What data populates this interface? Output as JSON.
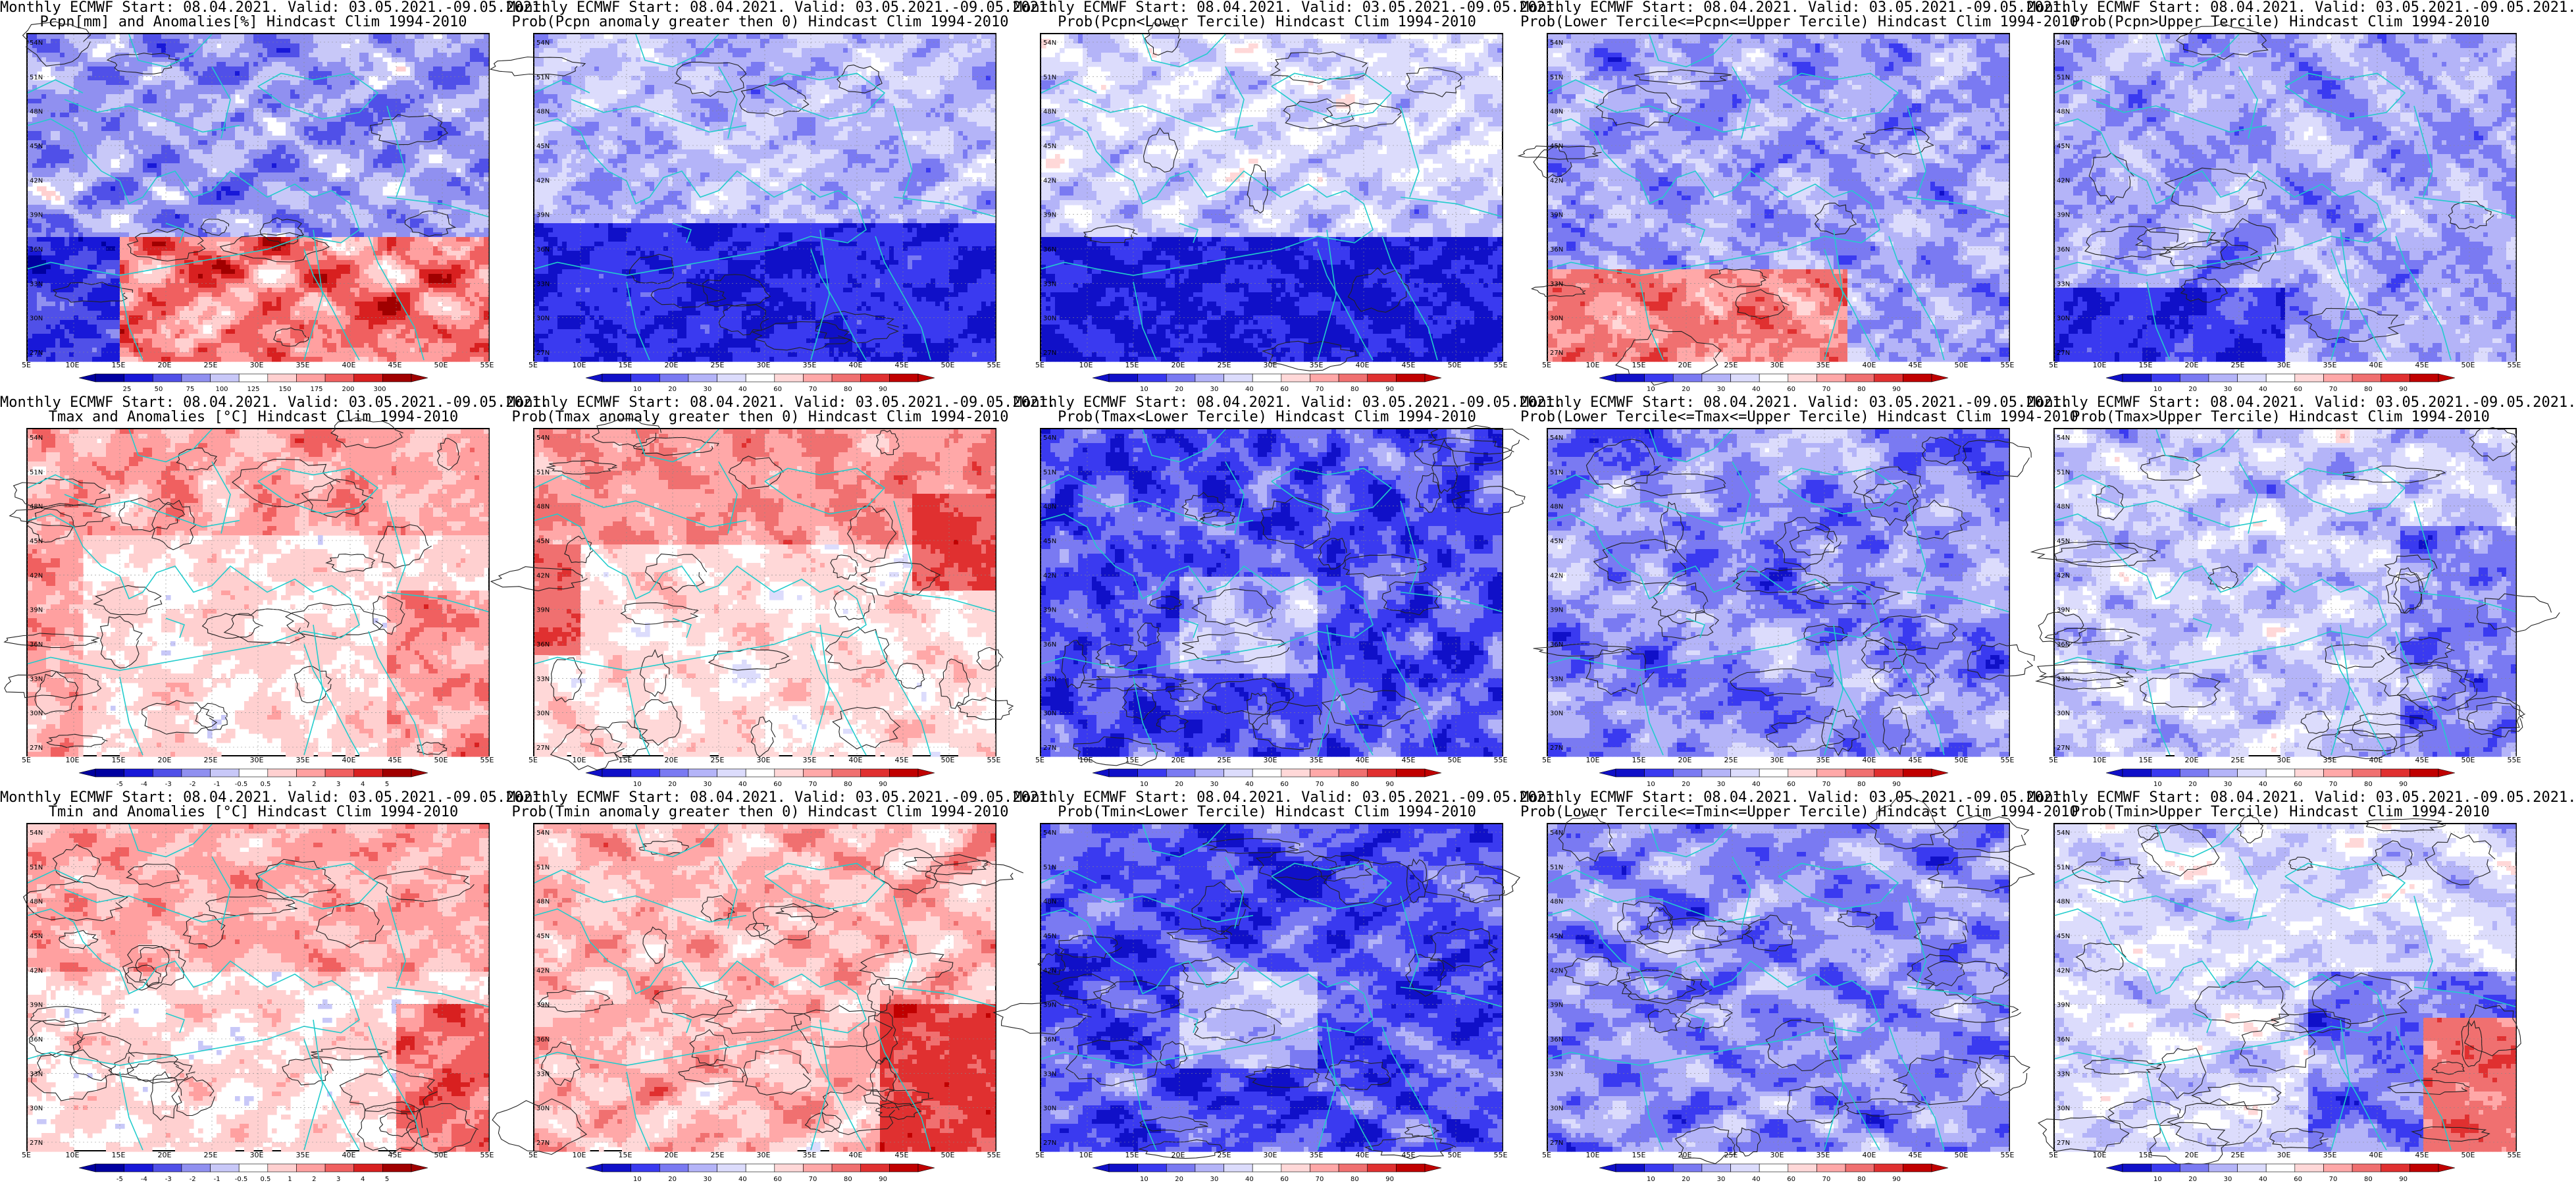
{
  "panels": [
    {
      "title1": "Monthly ECMWF Start: 08.04.2021. Valid: 03.05.2021.-09.05.2021.",
      "title2": "Pcpn[mm] and Anomalies[%] Hindcast Clim 1994-2010",
      "scale": "anomaly_pcp",
      "pattern": "pcp_anom",
      "colorbar_labels": [
        "25",
        "50",
        "75",
        "100",
        "125",
        "150",
        "175",
        "200",
        "300"
      ]
    },
    {
      "title1": "Monthly ECMWF Start: 08.04.2021. Valid: 03.05.2021.-09.05.2021.",
      "title2": "Prob(Pcpn anomaly greater then 0) Hindcast Clim 1994-2010",
      "scale": "prob",
      "pattern": "pcp_dry_blue",
      "colorbar_labels": [
        "10",
        "20",
        "30",
        "40",
        "60",
        "70",
        "80",
        "90"
      ]
    },
    {
      "title1": "Monthly ECMWF Start: 08.04.2021. Valid: 03.05.2021.-09.05.2021.",
      "title2": "Prob(Pcpn<Lower Tercile) Hindcast Clim 1994-2010",
      "scale": "prob",
      "pattern": "pcp_lower",
      "colorbar_labels": [
        "10",
        "20",
        "30",
        "40",
        "60",
        "70",
        "80",
        "90"
      ]
    },
    {
      "title1": "Monthly ECMWF Start: 08.04.2021. Valid: 03.05.2021.-09.05.2021.",
      "title2": "Prob(Lower Tercile<=Pcpn<=Upper Tercile) Hindcast Clim 1994-2010",
      "scale": "prob",
      "pattern": "pcp_mid",
      "colorbar_labels": [
        "10",
        "20",
        "30",
        "40",
        "60",
        "70",
        "80",
        "90"
      ]
    },
    {
      "title1": "Monthly ECMWF Start: 08.04.2021. Valid: 03.05.2021.-09.05.2021.",
      "title2": "Prob(Pcpn>Upper Tercile) Hindcast Clim 1994-2010",
      "scale": "prob",
      "pattern": "pcp_upper",
      "colorbar_labels": [
        "10",
        "20",
        "30",
        "40",
        "60",
        "70",
        "80",
        "90"
      ]
    },
    {
      "title1": "Monthly ECMWF Start: 08.04.2021. Valid: 03.05.2021.-09.05.2021.",
      "title2": "Tmax and Anomalies [°C] Hindcast Clim 1994-2010",
      "scale": "anomaly_t",
      "pattern": "t_anom",
      "colorbar_labels": [
        "-5",
        "-4",
        "-3",
        "-2",
        "-1",
        "-0.5",
        "0.5",
        "1",
        "2",
        "3",
        "4",
        "5"
      ]
    },
    {
      "title1": "Monthly ECMWF Start: 08.04.2021. Valid: 03.05.2021.-09.05.2021.",
      "title2": "Prob(Tmax anomaly greater then 0) Hindcast Clim 1994-2010",
      "scale": "prob",
      "pattern": "t_prob_warm",
      "colorbar_labels": [
        "10",
        "20",
        "30",
        "40",
        "60",
        "70",
        "80",
        "90"
      ]
    },
    {
      "title1": "Monthly ECMWF Start: 08.04.2021. Valid: 03.05.2021.-09.05.2021.",
      "title2": "Prob(Tmax<Lower Tercile) Hindcast Clim 1994-2010",
      "scale": "prob",
      "pattern": "t_blue_strong",
      "colorbar_labels": [
        "10",
        "20",
        "30",
        "40",
        "60",
        "70",
        "80",
        "90"
      ]
    },
    {
      "title1": "Monthly ECMWF Start: 08.04.2021. Valid: 03.05.2021.-09.05.2021.",
      "title2": "Prob(Lower Tercile<=Tmax<=Upper Tercile) Hindcast Clim 1994-2010",
      "scale": "prob",
      "pattern": "t_blue_mid",
      "colorbar_labels": [
        "10",
        "20",
        "30",
        "40",
        "60",
        "70",
        "80",
        "90"
      ]
    },
    {
      "title1": "Monthly ECMWF Start: 08.04.2021. Valid: 03.05.2021.-09.05.2021.",
      "title2": "Prob(Tmax>Upper Tercile) Hindcast Clim 1994-2010",
      "scale": "prob",
      "pattern": "t_blue_light",
      "colorbar_labels": [
        "10",
        "20",
        "30",
        "40",
        "60",
        "70",
        "80",
        "90"
      ]
    },
    {
      "title1": "Monthly ECMWF Start: 08.04.2021. Valid: 03.05.2021.-09.05.2021.",
      "title2": "Tmin and Anomalies [°C] Hindcast Clim 1994-2010",
      "scale": "anomaly_t",
      "pattern": "tmin_anom",
      "colorbar_labels": [
        "-5",
        "-4",
        "-3",
        "-2",
        "-1",
        "-0.5",
        "0.5",
        "1",
        "2",
        "3",
        "4",
        "5"
      ]
    },
    {
      "title1": "Monthly ECMWF Start: 08.04.2021. Valid: 03.05.2021.-09.05.2021.",
      "title2": "Prob(Tmin anomaly greater then 0) Hindcast Clim 1994-2010",
      "scale": "prob",
      "pattern": "tmin_prob_warm",
      "colorbar_labels": [
        "10",
        "20",
        "30",
        "40",
        "60",
        "70",
        "80",
        "90"
      ]
    },
    {
      "title1": "Monthly ECMWF Start: 08.04.2021. Valid: 03.05.2021.-09.05.2021.",
      "title2": "Prob(Tmin<Lower Tercile) Hindcast Clim 1994-2010",
      "scale": "prob",
      "pattern": "t_blue_strong",
      "colorbar_labels": [
        "10",
        "20",
        "30",
        "40",
        "60",
        "70",
        "80",
        "90"
      ]
    },
    {
      "title1": "Monthly ECMWF Start: 08.04.2021. Valid: 03.05.2021.-09.05.2021.",
      "title2": "Prob(Lower Tercile<=Tmin<=Upper Tercile) Hindcast Clim 1994-2010",
      "scale": "prob",
      "pattern": "t_blue_mid",
      "colorbar_labels": [
        "10",
        "20",
        "30",
        "40",
        "60",
        "70",
        "80",
        "90"
      ]
    },
    {
      "title1": "Monthly ECMWF Start: 08.04.2021. Valid: 03.05.2021.-09.05.2021.",
      "title2": "Prob(Tmin>Upper Tercile) Hindcast Clim 1994-2010",
      "scale": "prob",
      "pattern": "tmin_upper",
      "colorbar_labels": [
        "10",
        "20",
        "30",
        "40",
        "60",
        "70",
        "80",
        "90"
      ]
    }
  ],
  "lat_labels": [
    "54N",
    "51N",
    "48N",
    "45N",
    "42N",
    "39N",
    "36N",
    "33N",
    "30N",
    "27N"
  ],
  "lon_labels": [
    "5E",
    "10E",
    "15E",
    "20E",
    "25E",
    "30E",
    "35E",
    "40E",
    "45E",
    "50E",
    "55E"
  ],
  "colors": {
    "prob": [
      "#1010c8",
      "#3a3af0",
      "#7a7af2",
      "#b4b4f8",
      "#dcdcfc",
      "#ffffff",
      "#ffd8d8",
      "#ffa8a8",
      "#f07070",
      "#e03030",
      "#c00000"
    ],
    "anomaly": [
      "#0000a0",
      "#1818d8",
      "#5050e8",
      "#9090f0",
      "#c8c8f8",
      "#ffffff",
      "#ffd0d0",
      "#ffa0a0",
      "#f06060",
      "#d82020",
      "#a00000"
    ],
    "coast": "#22cccc",
    "contour": "#222222"
  }
}
